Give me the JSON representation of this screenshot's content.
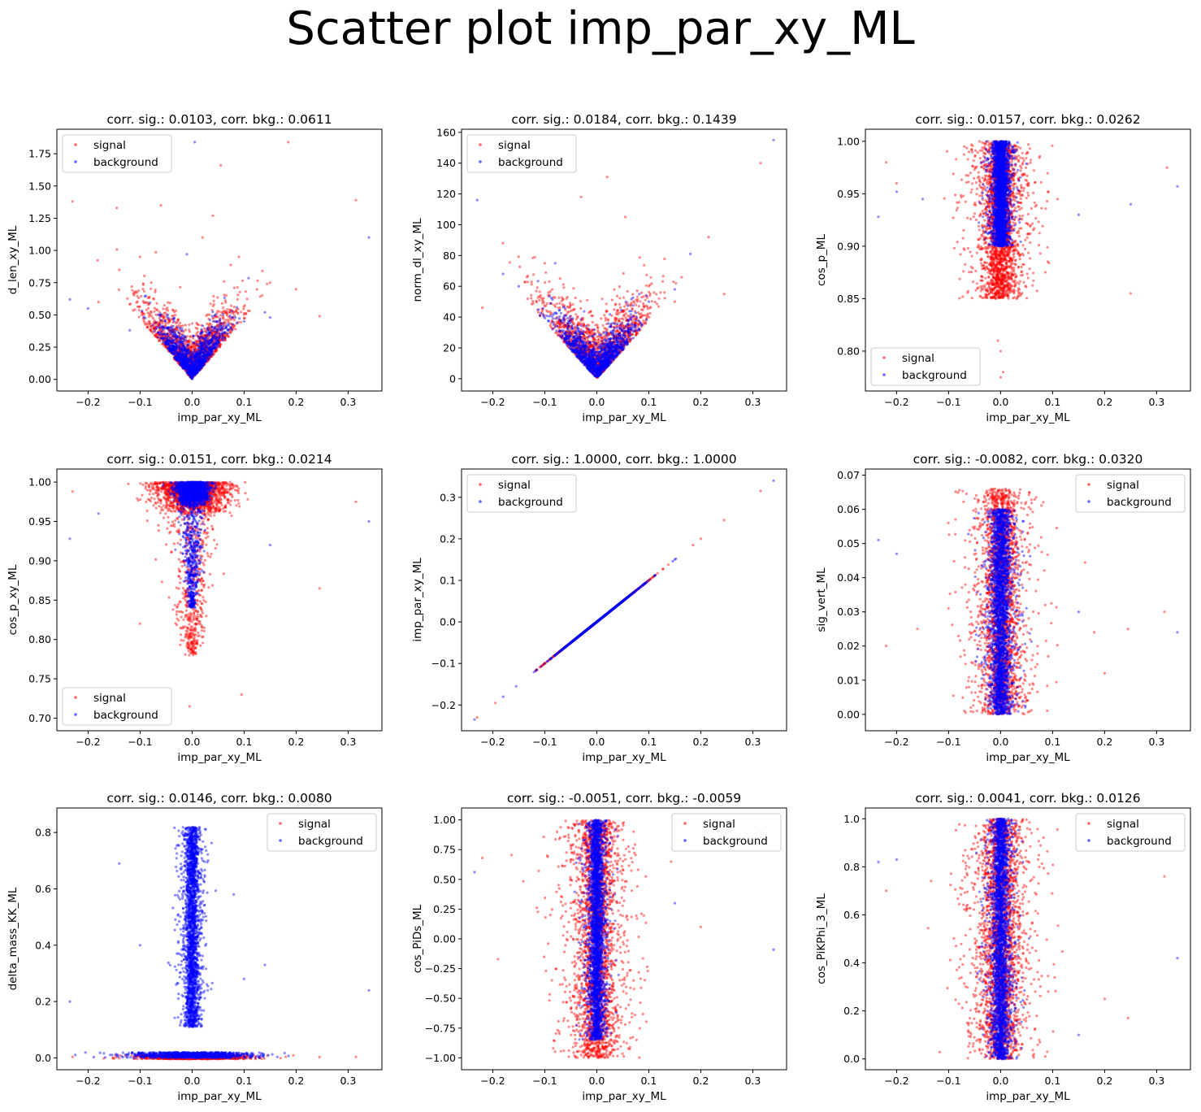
{
  "suptitle": "Scatter plot imp_par_xy_ML",
  "colors": {
    "signal": "#ff0000",
    "background": "#0000ff"
  },
  "chart_data": [
    {
      "type": "scatter",
      "title": "corr. sig.: 0.0103, corr. bkg.: 0.0611",
      "xlabel": "imp_par_xy_ML",
      "ylabel": "d_len_xy_ML",
      "xlim": [
        -0.26,
        0.365
      ],
      "ylim": [
        -0.09,
        1.94
      ],
      "xticks": [
        -0.2,
        -0.1,
        0.0,
        0.1,
        0.2,
        0.3
      ],
      "yticks": [
        0.0,
        0.25,
        0.5,
        0.75,
        1.0,
        1.25,
        1.5,
        1.75
      ],
      "legend": "upper left",
      "series": [
        {
          "name": "signal",
          "color": "#ff0000",
          "core": {
            "shape": "v",
            "yMin": 0,
            "yMax": 0.45,
            "sx": 0.045,
            "count": 1400
          },
          "outliers": [
            [
              -0.23,
              1.38
            ],
            [
              -0.145,
              1.33
            ],
            [
              0.185,
              1.84
            ],
            [
              0.055,
              1.66
            ],
            [
              0.315,
              1.39
            ],
            [
              0.245,
              0.49
            ],
            [
              -0.14,
              0.85
            ],
            [
              -0.06,
              1.35
            ],
            [
              0.04,
              1.27
            ],
            [
              0.02,
              1.1
            ],
            [
              0.15,
              0.75
            ],
            [
              -0.1,
              0.95
            ],
            [
              0.09,
              0.95
            ],
            [
              -0.18,
              0.6
            ],
            [
              0.2,
              0.7
            ]
          ]
        },
        {
          "name": "background",
          "color": "#0000ff",
          "core": {
            "shape": "v",
            "yMin": 0,
            "yMax": 0.32,
            "sx": 0.03,
            "count": 1200
          },
          "outliers": [
            [
              0.005,
              1.84
            ],
            [
              0.34,
              1.1
            ],
            [
              -0.235,
              0.62
            ],
            [
              -0.2,
              0.55
            ],
            [
              0.15,
              0.48
            ],
            [
              -0.12,
              0.38
            ],
            [
              0.1,
              0.45
            ],
            [
              -0.01,
              0.97
            ],
            [
              0.14,
              0.52
            ]
          ]
        }
      ]
    },
    {
      "type": "scatter",
      "title": "corr. sig.: 0.0184, corr. bkg.: 0.1439",
      "xlabel": "imp_par_xy_ML",
      "ylabel": "norm_dl_xy_ML",
      "xlim": [
        -0.26,
        0.365
      ],
      "ylim": [
        -8,
        162
      ],
      "xticks": [
        -0.2,
        -0.1,
        0.0,
        0.1,
        0.2,
        0.3
      ],
      "yticks": [
        0,
        20,
        40,
        60,
        80,
        100,
        120,
        140,
        160
      ],
      "legend": "upper left",
      "series": [
        {
          "name": "signal",
          "color": "#ff0000",
          "core": {
            "shape": "v",
            "yMin": 0,
            "yMax": 40,
            "sx": 0.05,
            "count": 1400
          },
          "outliers": [
            [
              0.315,
              140
            ],
            [
              0.02,
              131
            ],
            [
              -0.03,
              118
            ],
            [
              0.055,
              105
            ],
            [
              0.215,
              92
            ],
            [
              0.245,
              55
            ],
            [
              -0.22,
              46
            ],
            [
              0.1,
              60
            ],
            [
              -0.1,
              75
            ],
            [
              0.15,
              50
            ]
          ]
        },
        {
          "name": "background",
          "color": "#0000ff",
          "core": {
            "shape": "v",
            "yMin": 0,
            "yMax": 28,
            "sx": 0.035,
            "count": 1200
          },
          "outliers": [
            [
              0.34,
              155
            ],
            [
              -0.23,
              116
            ],
            [
              0.18,
              81
            ],
            [
              -0.15,
              60
            ],
            [
              -0.08,
              75
            ],
            [
              0.1,
              50
            ],
            [
              0.15,
              58
            ],
            [
              -0.18,
              68
            ]
          ]
        }
      ]
    },
    {
      "type": "scatter",
      "title": "corr. sig.: 0.0157, corr. bkg.: 0.0262",
      "xlabel": "imp_par_xy_ML",
      "ylabel": "cos_p_ML",
      "xlim": [
        -0.26,
        0.365
      ],
      "ylim": [
        0.762,
        1.0115
      ],
      "xticks": [
        -0.2,
        -0.1,
        0.0,
        0.1,
        0.2,
        0.3
      ],
      "yticks": [
        0.8,
        0.85,
        0.9,
        0.95,
        1.0
      ],
      "legend": "lower left",
      "series": [
        {
          "name": "signal",
          "color": "#ff0000",
          "core": {
            "shape": "band",
            "yMin": 0.85,
            "yMax": 1.0,
            "sx": 0.03,
            "count": 2400
          },
          "outliers": [
            [
              -0.22,
              0.98
            ],
            [
              0.32,
              0.975
            ],
            [
              0.25,
              0.855
            ],
            [
              -0.005,
              0.81
            ],
            [
              0.0,
              0.8
            ],
            [
              0.005,
              0.78
            ],
            [
              0.0,
              0.775
            ],
            [
              -0.2,
              0.96
            ]
          ]
        },
        {
          "name": "background",
          "color": "#0000ff",
          "core": {
            "shape": "band",
            "yMin": 0.9,
            "yMax": 1.0,
            "sx": 0.012,
            "count": 2400
          },
          "outliers": [
            [
              -0.235,
              0.928
            ],
            [
              0.34,
              0.957
            ],
            [
              -0.2,
              0.952
            ],
            [
              0.25,
              0.94
            ],
            [
              -0.15,
              0.945
            ],
            [
              0.15,
              0.93
            ]
          ]
        }
      ]
    },
    {
      "type": "scatter",
      "title": "corr. sig.: 0.0151, corr. bkg.: 0.0214",
      "xlabel": "imp_par_xy_ML",
      "ylabel": "cos_p_xy_ML",
      "xlim": [
        -0.26,
        0.365
      ],
      "ylim": [
        0.684,
        1.0166
      ],
      "xticks": [
        -0.2,
        -0.1,
        0.0,
        0.1,
        0.2,
        0.3
      ],
      "yticks": [
        0.7,
        0.75,
        0.8,
        0.85,
        0.9,
        0.95,
        1.0
      ],
      "legend": "lower left",
      "series": [
        {
          "name": "signal",
          "color": "#ff0000",
          "core": {
            "shape": "cone",
            "yMin": 0.78,
            "yMax": 1.0,
            "sx": 0.04,
            "count": 2200
          },
          "outliers": [
            [
              0.315,
              0.975
            ],
            [
              0.245,
              0.865
            ],
            [
              0.095,
              0.73
            ],
            [
              -0.005,
              0.715
            ],
            [
              -0.23,
              0.988
            ],
            [
              -0.1,
              0.82
            ]
          ]
        },
        {
          "name": "background",
          "color": "#0000ff",
          "core": {
            "shape": "cone",
            "yMin": 0.84,
            "yMax": 1.0,
            "sx": 0.018,
            "count": 2200
          },
          "outliers": [
            [
              -0.235,
              0.928
            ],
            [
              0.34,
              0.95
            ],
            [
              -0.18,
              0.96
            ],
            [
              0.15,
              0.92
            ]
          ]
        }
      ]
    },
    {
      "type": "scatter",
      "title": "corr. sig.: 1.0000, corr. bkg.: 1.0000",
      "xlabel": "imp_par_xy_ML",
      "ylabel": "imp_par_xy_ML",
      "xlim": [
        -0.26,
        0.365
      ],
      "ylim": [
        -0.262,
        0.368
      ],
      "xticks": [
        -0.2,
        -0.1,
        0.0,
        0.1,
        0.2,
        0.3
      ],
      "yticks": [
        -0.2,
        -0.1,
        0.0,
        0.1,
        0.2,
        0.3
      ],
      "legend": "upper left",
      "series": [
        {
          "name": "signal",
          "color": "#ff0000",
          "core": {
            "shape": "diag",
            "sx": 0.045,
            "count": 900
          },
          "outliers": [
            [
              -0.23,
              -0.23
            ],
            [
              0.315,
              0.315
            ],
            [
              0.245,
              0.245
            ],
            [
              0.185,
              0.185
            ],
            [
              -0.195,
              -0.195
            ],
            [
              0.2,
              0.2
            ]
          ]
        },
        {
          "name": "background",
          "color": "#0000ff",
          "core": {
            "shape": "diag",
            "sx": 0.04,
            "count": 900
          },
          "outliers": [
            [
              -0.235,
              -0.235
            ],
            [
              0.34,
              0.34
            ],
            [
              -0.18,
              -0.18
            ],
            [
              0.15,
              0.15
            ],
            [
              -0.155,
              -0.155
            ]
          ]
        }
      ]
    },
    {
      "type": "scatter",
      "title": "corr. sig.: -0.0082, corr. bkg.: 0.0320",
      "xlabel": "imp_par_xy_ML",
      "ylabel": "sig_vert_ML",
      "xlim": [
        -0.26,
        0.365
      ],
      "ylim": [
        -0.0048,
        0.0718
      ],
      "xticks": [
        -0.2,
        -0.1,
        0.0,
        0.1,
        0.2,
        0.3
      ],
      "yticks": [
        0.0,
        0.01,
        0.02,
        0.03,
        0.04,
        0.05,
        0.06,
        0.07
      ],
      "legend": "upper right",
      "series": [
        {
          "name": "signal",
          "color": "#ff0000",
          "core": {
            "shape": "band",
            "yMin": 0.0,
            "yMax": 0.066,
            "sx": 0.032,
            "count": 2400
          },
          "outliers": [
            [
              -0.22,
              0.02
            ],
            [
              0.315,
              0.03
            ],
            [
              0.245,
              0.025
            ],
            [
              0.18,
              0.024
            ],
            [
              -0.16,
              0.025
            ],
            [
              0.2,
              0.012
            ]
          ]
        },
        {
          "name": "background",
          "color": "#0000ff",
          "core": {
            "shape": "band",
            "yMin": 0.0,
            "yMax": 0.06,
            "sx": 0.016,
            "count": 2400
          },
          "outliers": [
            [
              -0.235,
              0.051
            ],
            [
              0.34,
              0.024
            ],
            [
              -0.2,
              0.047
            ],
            [
              0.15,
              0.03
            ]
          ]
        }
      ]
    },
    {
      "type": "scatter",
      "title": "corr. sig.: 0.0146, corr. bkg.: 0.0080",
      "xlabel": "imp_par_xy_ML",
      "ylabel": "delta_mass_KK_ML",
      "xlim": [
        -0.26,
        0.365
      ],
      "ylim": [
        -0.042,
        0.887
      ],
      "xticks": [
        -0.2,
        -0.1,
        0.0,
        0.1,
        0.2,
        0.3
      ],
      "yticks": [
        0.0,
        0.2,
        0.4,
        0.6,
        0.8
      ],
      "legend": "upper right",
      "series": [
        {
          "name": "signal",
          "color": "#ff0000",
          "core": {
            "shape": "flat",
            "yMin": -0.004,
            "yMax": 0.01,
            "sx": 0.05,
            "count": 1200
          },
          "outliers": [
            [
              -0.23,
              0.004
            ],
            [
              0.315,
              0.003
            ],
            [
              0.245,
              0.003
            ],
            [
              0.18,
              0.004
            ]
          ]
        },
        {
          "name": "background",
          "color": "#0000ff",
          "core": {
            "shape": "band",
            "yMin": 0.11,
            "yMax": 0.82,
            "sx": 0.012,
            "count": 2200
          },
          "outliers": [
            [
              -0.235,
              0.2
            ],
            [
              0.34,
              0.24
            ],
            [
              -0.14,
              0.69
            ],
            [
              -0.1,
              0.4
            ],
            [
              0.08,
              0.58
            ],
            [
              0.1,
              0.28
            ],
            [
              0.14,
              0.33
            ]
          ]
        },
        {
          "name": "background",
          "color": "#0000ff",
          "core": {
            "shape": "flat",
            "yMin": 0.0,
            "yMax": 0.02,
            "sx": 0.06,
            "count": 900
          },
          "outliers": []
        }
      ]
    },
    {
      "type": "scatter",
      "title": "corr. sig.: -0.0051, corr. bkg.: -0.0059",
      "xlabel": "imp_par_xy_ML",
      "ylabel": "cos_PiDs_ML",
      "xlim": [
        -0.26,
        0.365
      ],
      "ylim": [
        -1.1,
        1.1
      ],
      "xticks": [
        -0.2,
        -0.1,
        0.0,
        0.1,
        0.2,
        0.3
      ],
      "yticks": [
        -1.0,
        -0.75,
        -0.5,
        -0.25,
        0.0,
        0.25,
        0.5,
        0.75,
        1.0
      ],
      "legend": "upper right",
      "series": [
        {
          "name": "signal",
          "color": "#ff0000",
          "core": {
            "shape": "band",
            "yMin": -1.0,
            "yMax": 1.0,
            "sx": 0.035,
            "count": 2600
          },
          "outliers": [
            [
              -0.22,
              0.68
            ],
            [
              0.315,
              0.9
            ],
            [
              0.2,
              0.1
            ],
            [
              -0.19,
              -0.17
            ]
          ]
        },
        {
          "name": "background",
          "color": "#0000ff",
          "core": {
            "shape": "band",
            "yMin": -0.85,
            "yMax": 1.0,
            "sx": 0.012,
            "count": 2600
          },
          "outliers": [
            [
              -0.235,
              0.56
            ],
            [
              0.34,
              -0.09
            ],
            [
              0.15,
              0.3
            ]
          ]
        }
      ]
    },
    {
      "type": "scatter",
      "title": "corr. sig.: 0.0041, corr. bkg.: 0.0126",
      "xlabel": "imp_par_xy_ML",
      "ylabel": "cos_PiKPhi_3_ML",
      "xlim": [
        -0.26,
        0.365
      ],
      "ylim": [
        -0.045,
        1.045
      ],
      "xticks": [
        -0.2,
        -0.1,
        0.0,
        0.1,
        0.2,
        0.3
      ],
      "yticks": [
        0.0,
        0.2,
        0.4,
        0.6,
        0.8,
        1.0
      ],
      "legend": "upper right",
      "series": [
        {
          "name": "signal",
          "color": "#ff0000",
          "core": {
            "shape": "band",
            "yMin": 0.0,
            "yMax": 1.0,
            "sx": 0.035,
            "count": 2600
          },
          "outliers": [
            [
              -0.22,
              0.7
            ],
            [
              0.315,
              0.76
            ],
            [
              0.2,
              0.25
            ],
            [
              0.245,
              0.17
            ]
          ]
        },
        {
          "name": "background",
          "color": "#0000ff",
          "core": {
            "shape": "band",
            "yMin": 0.0,
            "yMax": 1.0,
            "sx": 0.014,
            "count": 2600
          },
          "outliers": [
            [
              -0.235,
              0.82
            ],
            [
              0.34,
              0.42
            ],
            [
              -0.2,
              0.83
            ],
            [
              0.15,
              0.1
            ]
          ]
        }
      ]
    }
  ]
}
